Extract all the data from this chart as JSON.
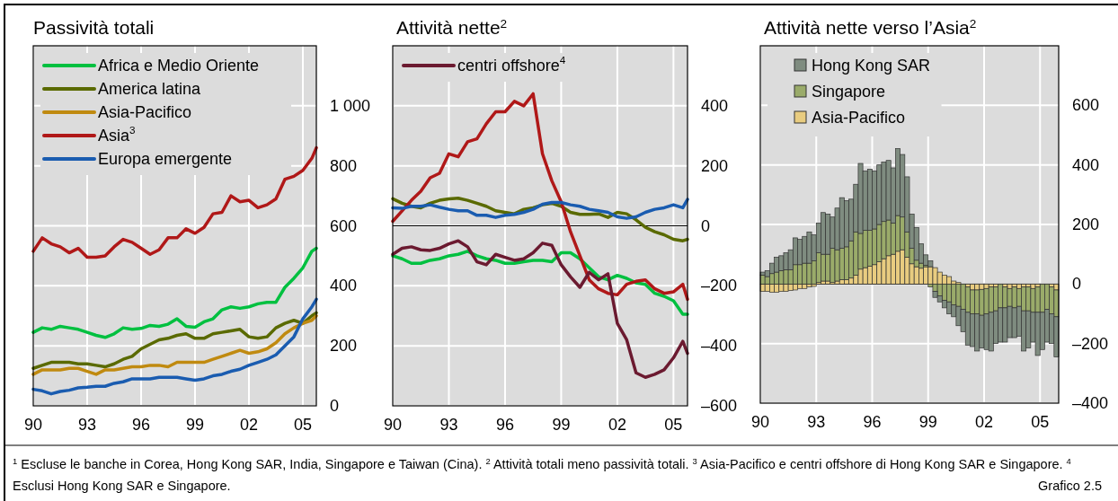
{
  "chart_data": [
    {
      "type": "line",
      "title": "Passività totali",
      "x": [
        1990,
        1990.5,
        1991,
        1991.5,
        1992,
        1992.5,
        1993,
        1993.5,
        1994,
        1994.5,
        1995,
        1995.5,
        1996,
        1996.5,
        1997,
        1997.5,
        1998,
        1998.5,
        1999,
        1999.5,
        2000,
        2000.5,
        2001,
        2001.5,
        2002,
        2002.5,
        2003,
        2003.5,
        2004,
        2004.5,
        2005,
        2005.5,
        2005.75
      ],
      "series": [
        {
          "name": "Africa e Medio Oriente",
          "color": "#00c040",
          "values": [
            245,
            260,
            255,
            265,
            260,
            255,
            245,
            235,
            228,
            240,
            260,
            255,
            258,
            268,
            265,
            272,
            290,
            265,
            262,
            280,
            290,
            320,
            330,
            325,
            330,
            340,
            345,
            345,
            395,
            425,
            460,
            515,
            525
          ]
        },
        {
          "name": "America latina",
          "color": "#5a6a00",
          "values": [
            125,
            135,
            145,
            145,
            145,
            140,
            140,
            135,
            130,
            140,
            155,
            165,
            190,
            205,
            220,
            225,
            235,
            240,
            225,
            225,
            240,
            245,
            250,
            255,
            230,
            225,
            230,
            260,
            275,
            285,
            275,
            300,
            310
          ]
        },
        {
          "name": "Asia-Pacifico",
          "color": "#c08a10",
          "values": [
            105,
            120,
            120,
            120,
            125,
            125,
            115,
            105,
            120,
            120,
            125,
            130,
            130,
            135,
            135,
            130,
            145,
            145,
            145,
            145,
            155,
            165,
            175,
            185,
            175,
            180,
            190,
            210,
            240,
            260,
            275,
            285,
            300
          ]
        },
        {
          "name": "Asia$^{3}$",
          "color": "#b01818",
          "values": [
            515,
            560,
            540,
            530,
            510,
            525,
            495,
            495,
            500,
            530,
            555,
            545,
            525,
            505,
            520,
            560,
            560,
            590,
            575,
            595,
            640,
            645,
            700,
            680,
            685,
            660,
            670,
            690,
            755,
            765,
            785,
            825,
            860
          ]
        },
        {
          "name": "Europa emergente",
          "color": "#1a5cb0",
          "values": [
            55,
            50,
            40,
            48,
            52,
            60,
            62,
            65,
            65,
            75,
            80,
            90,
            90,
            90,
            95,
            95,
            95,
            90,
            85,
            90,
            100,
            105,
            115,
            122,
            135,
            145,
            155,
            170,
            200,
            230,
            290,
            330,
            355
          ]
        }
      ],
      "xlim": [
        1990,
        2005.75
      ],
      "xticks": [
        {
          "value": 1990,
          "label": "90"
        },
        {
          "value": 1993,
          "label": "93"
        },
        {
          "value": 1996,
          "label": "96"
        },
        {
          "value": 1999,
          "label": "99"
        },
        {
          "value": 2002,
          "label": "02"
        },
        {
          "value": 2005,
          "label": "05"
        }
      ],
      "ylim": [
        0,
        1200
      ],
      "yticks": [
        0,
        200,
        400,
        600,
        800,
        {
          "value": 1000,
          "label": "1 000"
        }
      ],
      "grid": true,
      "legend": "top left",
      "annotations": [
        "$^{1}$ Escluse le banche in Corea, Hong Kong SAR, India, Singapore e Taiwan (Cina). $^{2}$ Attività totali meno passività totali. $^{3}$ Asia-Pacifico e centri offshore di Hong Kong SAR e Singapore. $^{4}$ Esclusi Hong Kong SAR e Singapore.",
        "Grafico 2.5"
      ]
    },
    {
      "type": "line",
      "title": "Attività nette$^{2}$",
      "x": [
        1990,
        1990.5,
        1991,
        1991.5,
        1992,
        1992.5,
        1993,
        1993.5,
        1994,
        1994.5,
        1995,
        1995.5,
        1996,
        1996.5,
        1997,
        1997.5,
        1998,
        1998.5,
        1999,
        1999.5,
        2000,
        2000.5,
        2001,
        2001.5,
        2002,
        2002.5,
        2003,
        2003.5,
        2004,
        2004.5,
        2005,
        2005.5,
        2005.75
      ],
      "series": [
        {
          "color": "#00c040",
          "values": [
            -100,
            -110,
            -125,
            -125,
            -115,
            -110,
            -100,
            -95,
            -85,
            -100,
            -110,
            -115,
            -125,
            -125,
            -120,
            -115,
            -115,
            -120,
            -90,
            -90,
            -110,
            -140,
            -170,
            -180,
            -165,
            -175,
            -190,
            -195,
            -225,
            -235,
            -250,
            -295,
            -295
          ]
        },
        {
          "color": "#5a6a00",
          "values": [
            90,
            75,
            65,
            60,
            75,
            85,
            90,
            92,
            85,
            75,
            65,
            50,
            45,
            40,
            55,
            60,
            70,
            75,
            65,
            45,
            38,
            38,
            40,
            28,
            45,
            40,
            20,
            -5,
            -20,
            -30,
            -45,
            -50,
            -45
          ]
        },
        {
          "color": "#b01818",
          "values": [
            15,
            50,
            85,
            115,
            160,
            175,
            240,
            230,
            280,
            290,
            340,
            380,
            380,
            415,
            400,
            440,
            240,
            150,
            80,
            -20,
            -100,
            -180,
            -210,
            -225,
            -230,
            -195,
            -185,
            -180,
            -210,
            -225,
            -220,
            -195,
            -245
          ]
        },
        {
          "color": "#1a5cb0",
          "values": [
            60,
            58,
            65,
            65,
            70,
            62,
            55,
            50,
            50,
            35,
            35,
            28,
            35,
            38,
            45,
            55,
            72,
            78,
            78,
            70,
            65,
            55,
            50,
            45,
            30,
            25,
            30,
            45,
            55,
            60,
            70,
            60,
            88
          ]
        },
        {
          "name": "centri offshore$^{4}$",
          "color": "#6b1a30",
          "values": [
            -95,
            -75,
            -70,
            -80,
            -82,
            -75,
            -60,
            -50,
            -70,
            -120,
            -130,
            -95,
            -105,
            -115,
            -110,
            -90,
            -58,
            -65,
            -130,
            -170,
            -205,
            -155,
            -180,
            -160,
            -325,
            -380,
            -490,
            -505,
            -495,
            -480,
            -440,
            -385,
            -425
          ]
        }
      ],
      "xlim": [
        1990,
        2005.75
      ],
      "xticks": [
        {
          "value": 1990,
          "label": "90"
        },
        {
          "value": 1993,
          "label": "93"
        },
        {
          "value": 1996,
          "label": "96"
        },
        {
          "value": 1999,
          "label": "99"
        },
        {
          "value": 2002,
          "label": "02"
        },
        {
          "value": 2005,
          "label": "05"
        }
      ],
      "ylim": [
        -600,
        600
      ],
      "yticks": [
        {
          "value": -600,
          "label": "–600"
        },
        {
          "value": -400,
          "label": "–400"
        },
        {
          "value": -200,
          "label": "–200"
        },
        0,
        200,
        400
      ],
      "grid": true,
      "legend": "top left",
      "ref_lines": [
        {
          "axis": "y",
          "value": 0,
          "color": "#000000"
        }
      ]
    },
    {
      "type": "bar",
      "title": "Attività nette verso l’Asia$^{2}$",
      "stacked": true,
      "x": [
        1990.125,
        1990.375,
        1990.625,
        1990.875,
        1991.125,
        1991.375,
        1991.625,
        1991.875,
        1992.125,
        1992.375,
        1992.625,
        1992.875,
        1993.125,
        1993.375,
        1993.625,
        1993.875,
        1994.125,
        1994.375,
        1994.625,
        1994.875,
        1995.125,
        1995.375,
        1995.625,
        1995.875,
        1996.125,
        1996.375,
        1996.625,
        1996.875,
        1997.125,
        1997.375,
        1997.625,
        1997.875,
        1998.125,
        1998.375,
        1998.625,
        1998.875,
        1999.125,
        1999.375,
        1999.625,
        1999.875,
        2000.125,
        2000.375,
        2000.625,
        2000.875,
        2001.125,
        2001.375,
        2001.625,
        2001.875,
        2002.125,
        2002.375,
        2002.625,
        2002.875,
        2003.125,
        2003.375,
        2003.625,
        2003.875,
        2004.125,
        2004.375,
        2004.625,
        2004.875,
        2005.125,
        2005.375,
        2005.625,
        2005.875
      ],
      "series": [
        {
          "name": "Asia-Pacifico",
          "color": "#e8cc80",
          "values": [
            -25,
            -25,
            -28,
            -28,
            -25,
            -25,
            -22,
            -20,
            -15,
            -15,
            -10,
            -8,
            5,
            10,
            10,
            5,
            10,
            15,
            15,
            20,
            30,
            50,
            55,
            60,
            65,
            75,
            85,
            95,
            100,
            110,
            115,
            90,
            68,
            58,
            53,
            58,
            58,
            55,
            40,
            30,
            25,
            10,
            5,
            null,
            -10,
            -20,
            -20,
            -18,
            -15,
            -10,
            -10,
            null,
            -10,
            -15,
            -10,
            -15,
            -10,
            -10,
            -15,
            -10,
            null,
            null,
            -10,
            -20
          ]
        },
        {
          "name": "Singapore",
          "color": "#9aab6a",
          "values": [
            30,
            25,
            35,
            40,
            45,
            48,
            48,
            65,
            65,
            70,
            70,
            78,
            100,
            90,
            90,
            115,
            105,
            105,
            110,
            125,
            145,
            120,
            125,
            120,
            120,
            125,
            125,
            120,
            105,
            120,
            110,
            85,
            52,
            22,
            17,
            5,
            -10,
            -25,
            -40,
            -55,
            -60,
            -70,
            -75,
            -85,
            -85,
            -80,
            -80,
            -87,
            -85,
            -85,
            -80,
            -80,
            -70,
            -60,
            -70,
            -60,
            -80,
            -80,
            -80,
            -85,
            -95,
            -85,
            -90,
            -90
          ]
        },
        {
          "name": "Hong Kong SAR",
          "color": "#7f8c80",
          "values": [
            10,
            20,
            35,
            50,
            50,
            57,
            67,
            90,
            85,
            90,
            105,
            87,
            100,
            140,
            135,
            105,
            140,
            170,
            155,
            140,
            160,
            235,
            200,
            205,
            195,
            200,
            200,
            200,
            185,
            225,
            210,
            185,
            115,
            110,
            65,
            35,
            20,
            -20,
            -20,
            -25,
            -40,
            -40,
            -65,
            -75,
            -110,
            -110,
            -125,
            -110,
            -120,
            -130,
            -110,
            -115,
            -115,
            -105,
            -100,
            -100,
            -135,
            -125,
            -100,
            -145,
            -125,
            -110,
            -100,
            -135
          ]
        }
      ],
      "xlim": [
        1990,
        2006
      ],
      "xticks": [
        {
          "value": 1990,
          "label": "90"
        },
        {
          "value": 1993,
          "label": "93"
        },
        {
          "value": 1996,
          "label": "96"
        },
        {
          "value": 1999,
          "label": "99"
        },
        {
          "value": 2002,
          "label": "02"
        },
        {
          "value": 2005,
          "label": "05"
        }
      ],
      "ylim": [
        -400,
        800
      ],
      "yticks": [
        {
          "value": -400,
          "label": "–400"
        },
        {
          "value": -200,
          "label": "–200"
        },
        0,
        200,
        400,
        600
      ],
      "grid": true,
      "legend": "top left",
      "ref_lines": [
        {
          "axis": "y",
          "value": 0,
          "color": "#000000"
        }
      ]
    }
  ]
}
